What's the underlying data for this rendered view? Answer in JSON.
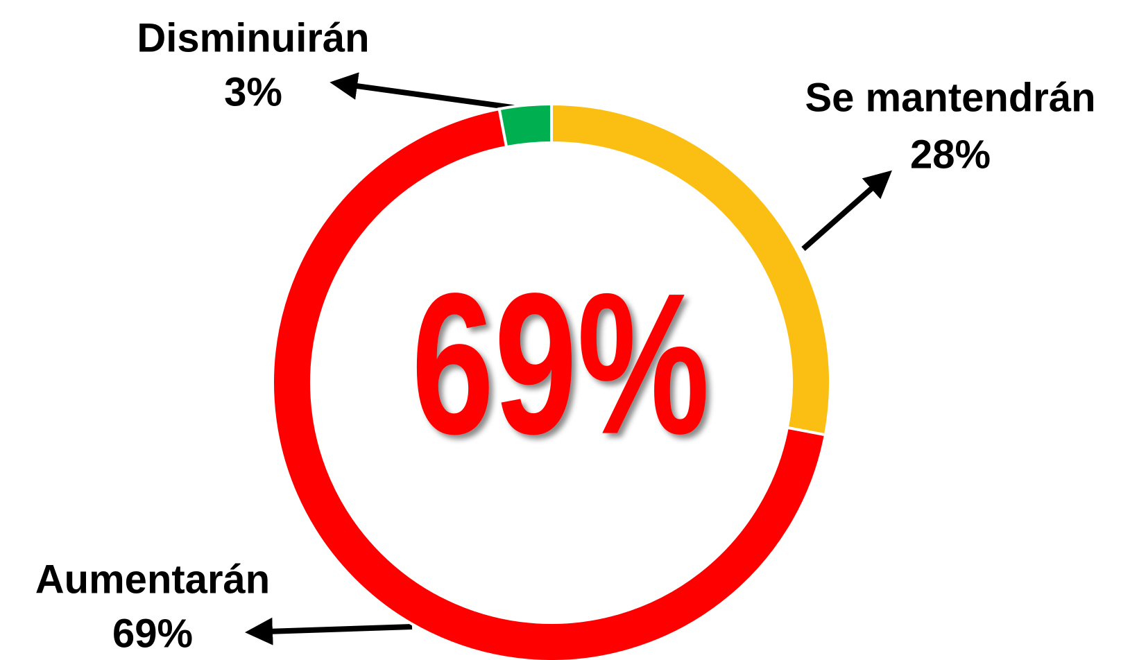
{
  "chart_data": {
    "type": "pie",
    "categories": [
      "Se mantendrán",
      "Aumentarán",
      "Disminuirán"
    ],
    "values": [
      28,
      69,
      3
    ],
    "value_labels": [
      "28%",
      "69%",
      "3%"
    ],
    "colors": [
      "#fbbf13",
      "#ff0000",
      "#00b050"
    ]
  }
}
